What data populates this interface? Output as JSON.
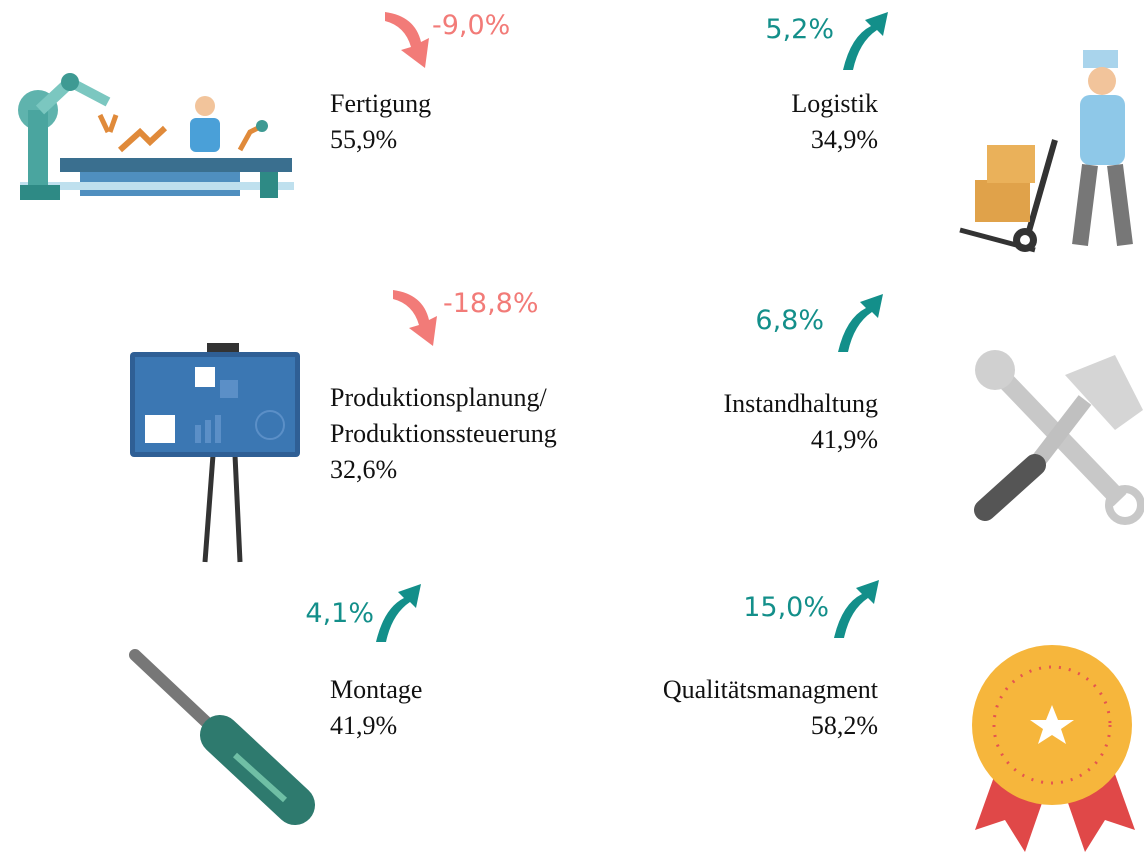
{
  "items": [
    {
      "lines": [
        "Fertigung"
      ],
      "share": "55,9%",
      "change": "-9,0%"
    },
    {
      "lines": [
        "Logistik"
      ],
      "share": "34,9%",
      "change": "5,2%"
    },
    {
      "lines": [
        "Produktionsplanung/",
        "Produktionssteuerung"
      ],
      "share": "32,6%",
      "change": "-18,8%"
    },
    {
      "lines": [
        "Instandhaltung"
      ],
      "share": "41,9%",
      "change": "6,8%"
    },
    {
      "lines": [
        "Montage"
      ],
      "share": "41,9%",
      "change": "4,1%"
    },
    {
      "lines": [
        "Qualitätsmanagment"
      ],
      "share": "58,2%",
      "change": "15,0%"
    }
  ]
}
